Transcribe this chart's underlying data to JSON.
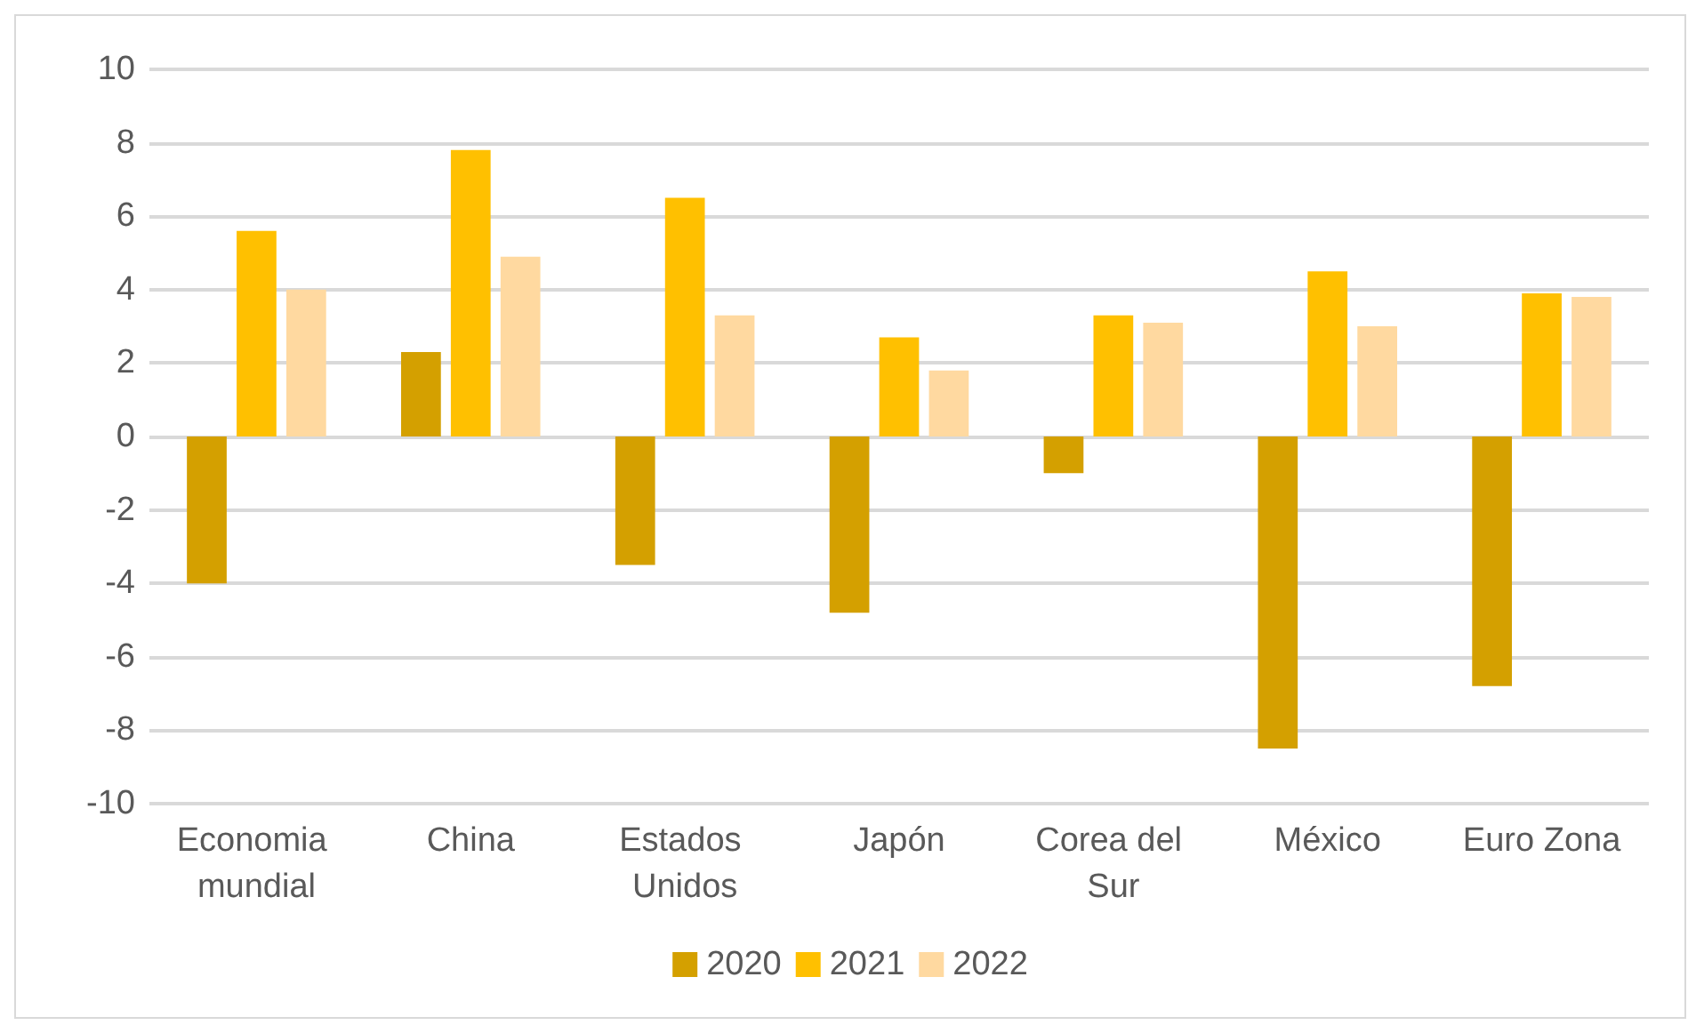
{
  "chart_data": {
    "type": "bar",
    "categories": [
      "Economia mundial",
      "China",
      "Estados Unidos",
      "Japón",
      "Corea del Sur",
      "México",
      "Euro Zona"
    ],
    "series": [
      {
        "name": "2020",
        "color": "#d4a000",
        "values": [
          -4.0,
          2.3,
          -3.5,
          -4.8,
          -1.0,
          -8.5,
          -6.8
        ]
      },
      {
        "name": "2021",
        "color": "#ffc000",
        "values": [
          5.6,
          7.8,
          6.5,
          2.7,
          3.3,
          4.5,
          3.9
        ]
      },
      {
        "name": "2022",
        "color": "#ffd9a0",
        "values": [
          4.0,
          4.9,
          3.3,
          1.8,
          3.1,
          3.0,
          3.8
        ]
      }
    ],
    "ylim": [
      -10,
      10
    ],
    "yticks": [
      -10,
      -8,
      -6,
      -4,
      -2,
      0,
      2,
      4,
      6,
      8,
      10
    ],
    "grid": "y",
    "legend": "bottom"
  }
}
